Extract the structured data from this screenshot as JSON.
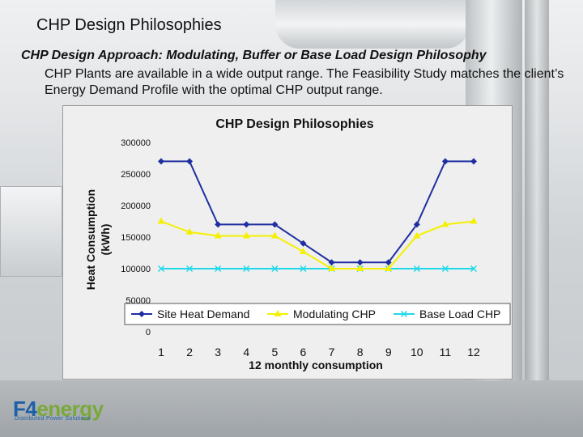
{
  "slide": {
    "title": "CHP Design Philosophies",
    "subtitle": "CHP Design Approach: Modulating, Buffer or Base Load Design Philosophy",
    "body": "CHP Plants are available in a wide output range. The Feasibility Study matches the client’s Energy Demand Profile with the optimal CHP output range."
  },
  "logo": {
    "brand_prefix": "F4",
    "brand_suffix": "energy",
    "tagline": "Distributed Power Solutions"
  },
  "chart_data": {
    "type": "line",
    "title": "CHP Design Philosophies",
    "xlabel": "12 monthly consumption",
    "ylabel": "Heat Consumption (kWh)",
    "ylim": [
      0,
      300000
    ],
    "yticks": [
      0,
      50000,
      100000,
      150000,
      200000,
      250000,
      300000
    ],
    "ytick_labels": [
      "0",
      "50000",
      "100000",
      "150000",
      "200000",
      "250000",
      "300000"
    ],
    "categories": [
      "1",
      "2",
      "3",
      "4",
      "5",
      "6",
      "7",
      "8",
      "9",
      "10",
      "11",
      "12"
    ],
    "series": [
      {
        "name": "Site Heat Demand",
        "color": "#1f2fa0",
        "marker": "diamond",
        "values": [
          270000,
          270000,
          170000,
          170000,
          170000,
          140000,
          110000,
          110000,
          110000,
          170000,
          270000,
          270000
        ]
      },
      {
        "name": "Modulating CHP",
        "color": "#f4f000",
        "marker": "triangle",
        "values": [
          175000,
          158000,
          152000,
          152000,
          152000,
          127000,
          100000,
          100000,
          100000,
          152000,
          170000,
          175000
        ]
      },
      {
        "name": "Base Load CHP",
        "color": "#20d8e8",
        "marker": "x",
        "values": [
          100000,
          100000,
          100000,
          100000,
          100000,
          100000,
          100000,
          100000,
          100000,
          100000,
          100000,
          100000
        ]
      }
    ],
    "legend_position": "bottom-inside",
    "grid": false
  }
}
